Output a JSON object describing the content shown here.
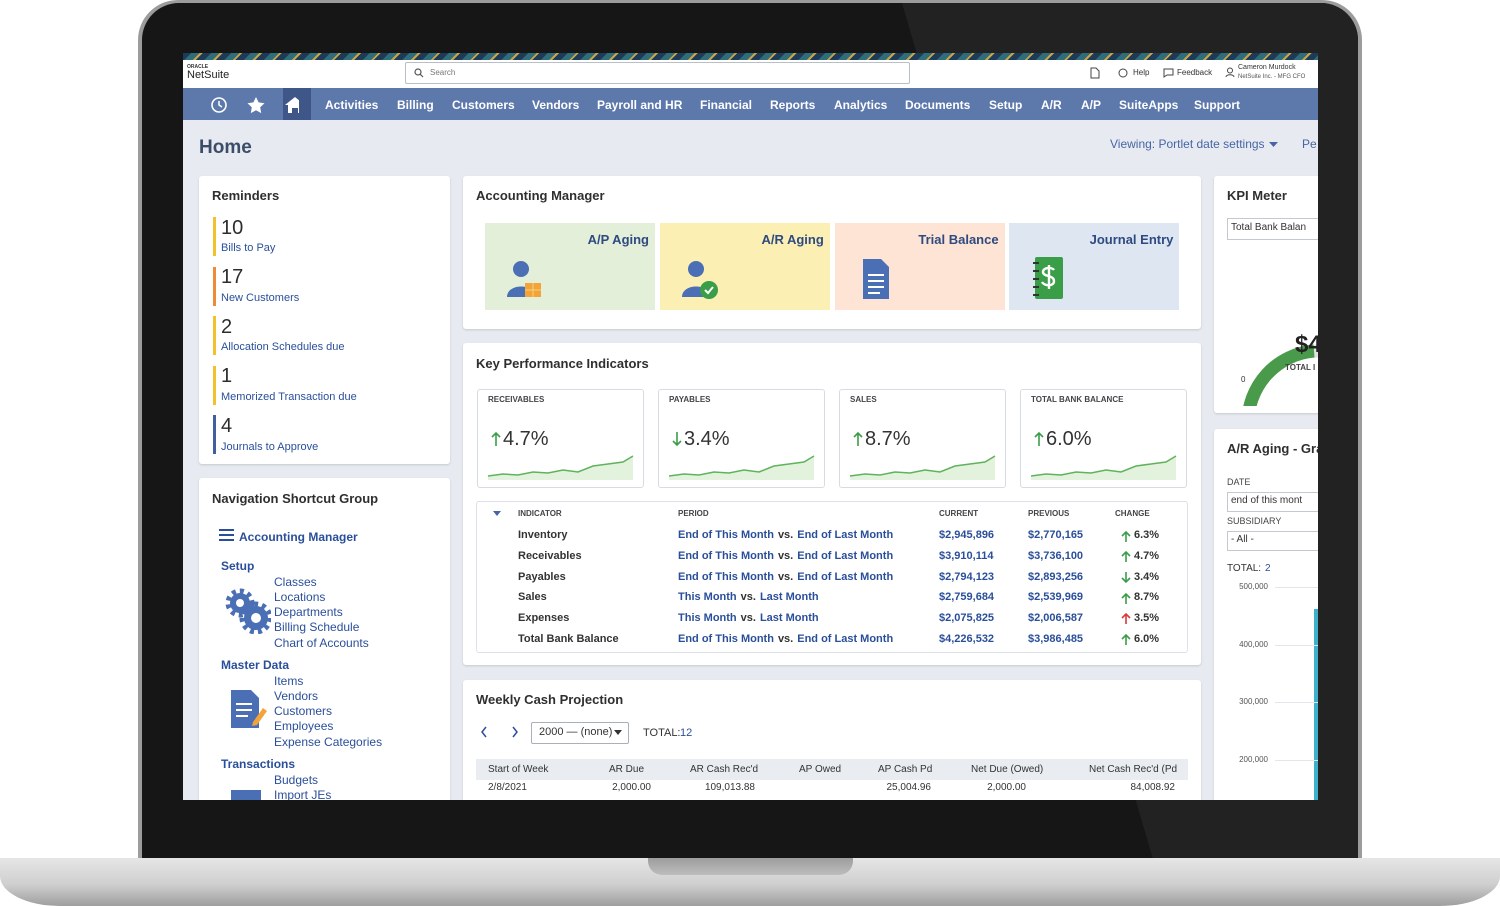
{
  "header": {
    "logo_top": "ORACLE",
    "logo": "NetSuite",
    "search": "Search",
    "help": "Help",
    "feedback": "Feedback",
    "user": "Cameron Murdock",
    "account": "NetSuite Inc. - MFG CFO"
  },
  "nav": [
    "Activities",
    "Billing",
    "Customers",
    "Vendors",
    "Payroll and HR",
    "Financial",
    "Reports",
    "Analytics",
    "Documents",
    "Setup",
    "A/R",
    "A/P",
    "SuiteApps",
    "Support"
  ],
  "page": {
    "title": "Home",
    "viewing": "Viewing: Portlet date settings",
    "cut": "Pe"
  },
  "reminders": {
    "title": "Reminders",
    "items": [
      {
        "count": 10,
        "label": "Bills to Pay",
        "color": "#f2c12e"
      },
      {
        "count": 17,
        "label": "New Customers",
        "color": "#ef8a3a"
      },
      {
        "count": 2,
        "label": "Allocation Schedules due",
        "color": "#f2c12e"
      },
      {
        "count": 1,
        "label": "Memorized Transaction due",
        "color": "#f2c12e"
      },
      {
        "count": 4,
        "label": "Journals to Approve",
        "color": "#3f5f9e"
      }
    ]
  },
  "shortcuts": {
    "title": "Navigation Shortcut Group",
    "top": "Accounting Manager",
    "groups": [
      {
        "name": "Setup",
        "links": [
          "Classes",
          "Locations",
          "Departments",
          "Billing Schedule",
          "Chart of Accounts"
        ]
      },
      {
        "name": "Master Data",
        "links": [
          "Items",
          "Vendors",
          "Customers",
          "Employees",
          "Expense Categories"
        ]
      },
      {
        "name": "Transactions",
        "links": [
          "Budgets",
          "Import JEs"
        ]
      }
    ]
  },
  "accounting": {
    "title": "Accounting Manager",
    "tiles": [
      {
        "label": "A/P Aging",
        "color": "#e3efd9"
      },
      {
        "label": "A/R Aging",
        "color": "#fbefb3"
      },
      {
        "label": "Trial Balance",
        "color": "#fde4d4"
      },
      {
        "label": "Journal Entry",
        "color": "#dde6f1"
      }
    ]
  },
  "kpi": {
    "title": "Key Performance Indicators",
    "cards": [
      {
        "label": "RECEIVABLES",
        "value": "4.7%",
        "direction": "up"
      },
      {
        "label": "PAYABLES",
        "value": "3.4%",
        "direction": "down"
      },
      {
        "label": "SALES",
        "value": "8.7%",
        "direction": "up"
      },
      {
        "label": "TOTAL BANK BALANCE",
        "value": "6.0%",
        "direction": "up"
      }
    ],
    "columns": [
      "INDICATOR",
      "PERIOD",
      "CURRENT",
      "PREVIOUS",
      "CHANGE"
    ],
    "rows": [
      {
        "indicator": "Inventory",
        "from": "End of This Month",
        "vs": "vs.",
        "to": "End of Last Month",
        "current": "$2,945,896",
        "previous": "$2,770,165",
        "change": "6.3%",
        "direction": "up",
        "color": "#3a9e48"
      },
      {
        "indicator": "Receivables",
        "from": "End of This Month",
        "vs": "vs.",
        "to": "End of Last Month",
        "current": "$3,910,114",
        "previous": "$3,736,100",
        "change": "4.7%",
        "direction": "up",
        "color": "#3a9e48"
      },
      {
        "indicator": "Payables",
        "from": "End of This Month",
        "vs": "vs.",
        "to": "End of Last Month",
        "current": "$2,794,123",
        "previous": "$2,893,256",
        "change": "3.4%",
        "direction": "down",
        "color": "#3a9e48"
      },
      {
        "indicator": "Sales",
        "from": "This Month",
        "vs": "vs.",
        "to": "Last Month",
        "current": "$2,759,684",
        "previous": "$2,539,969",
        "change": "8.7%",
        "direction": "up",
        "color": "#3a9e48"
      },
      {
        "indicator": "Expenses",
        "from": "This Month",
        "vs": "vs.",
        "to": "Last Month",
        "current": "$2,075,825",
        "previous": "$2,006,587",
        "change": "3.5%",
        "direction": "up",
        "color": "#d93a3a"
      },
      {
        "indicator": "Total Bank Balance",
        "from": "End of This Month",
        "vs": "vs.",
        "to": "End of Last Month",
        "current": "$4,226,532",
        "previous": "$3,986,485",
        "change": "6.0%",
        "direction": "up",
        "color": "#3a9e48"
      }
    ]
  },
  "cash": {
    "title": "Weekly Cash Projection",
    "select": "2000 — (none)",
    "total_label": "TOTAL:",
    "total": "12",
    "columns": [
      "Start of Week",
      "AR Due",
      "AR Cash Rec'd",
      "AP Owed",
      "AP Cash Pd",
      "Net Due (Owed)",
      "Net Cash Rec'd (Pd"
    ],
    "row": {
      "0": "2/8/2021",
      "1": "2,000.00",
      "2": "109,013.88",
      "4": "25,004.96",
      "5": "2,000.00",
      "6": "84,008.92"
    }
  },
  "kpi_meter": {
    "title": "KPI Meter",
    "select": "Total Bank Balan",
    "value": "$4",
    "caption": "TOTAL I",
    "min": "0"
  },
  "ar_aging": {
    "title": "A/R Aging - Gra",
    "date_label": "DATE",
    "date": "end of this mont",
    "subsidiary_label": "SUBSIDIARY",
    "subsidiary": "- All -",
    "total_label": "TOTAL:",
    "total": "2",
    "ticks": [
      "500,000",
      "400,000",
      "300,000",
      "200,000"
    ]
  }
}
